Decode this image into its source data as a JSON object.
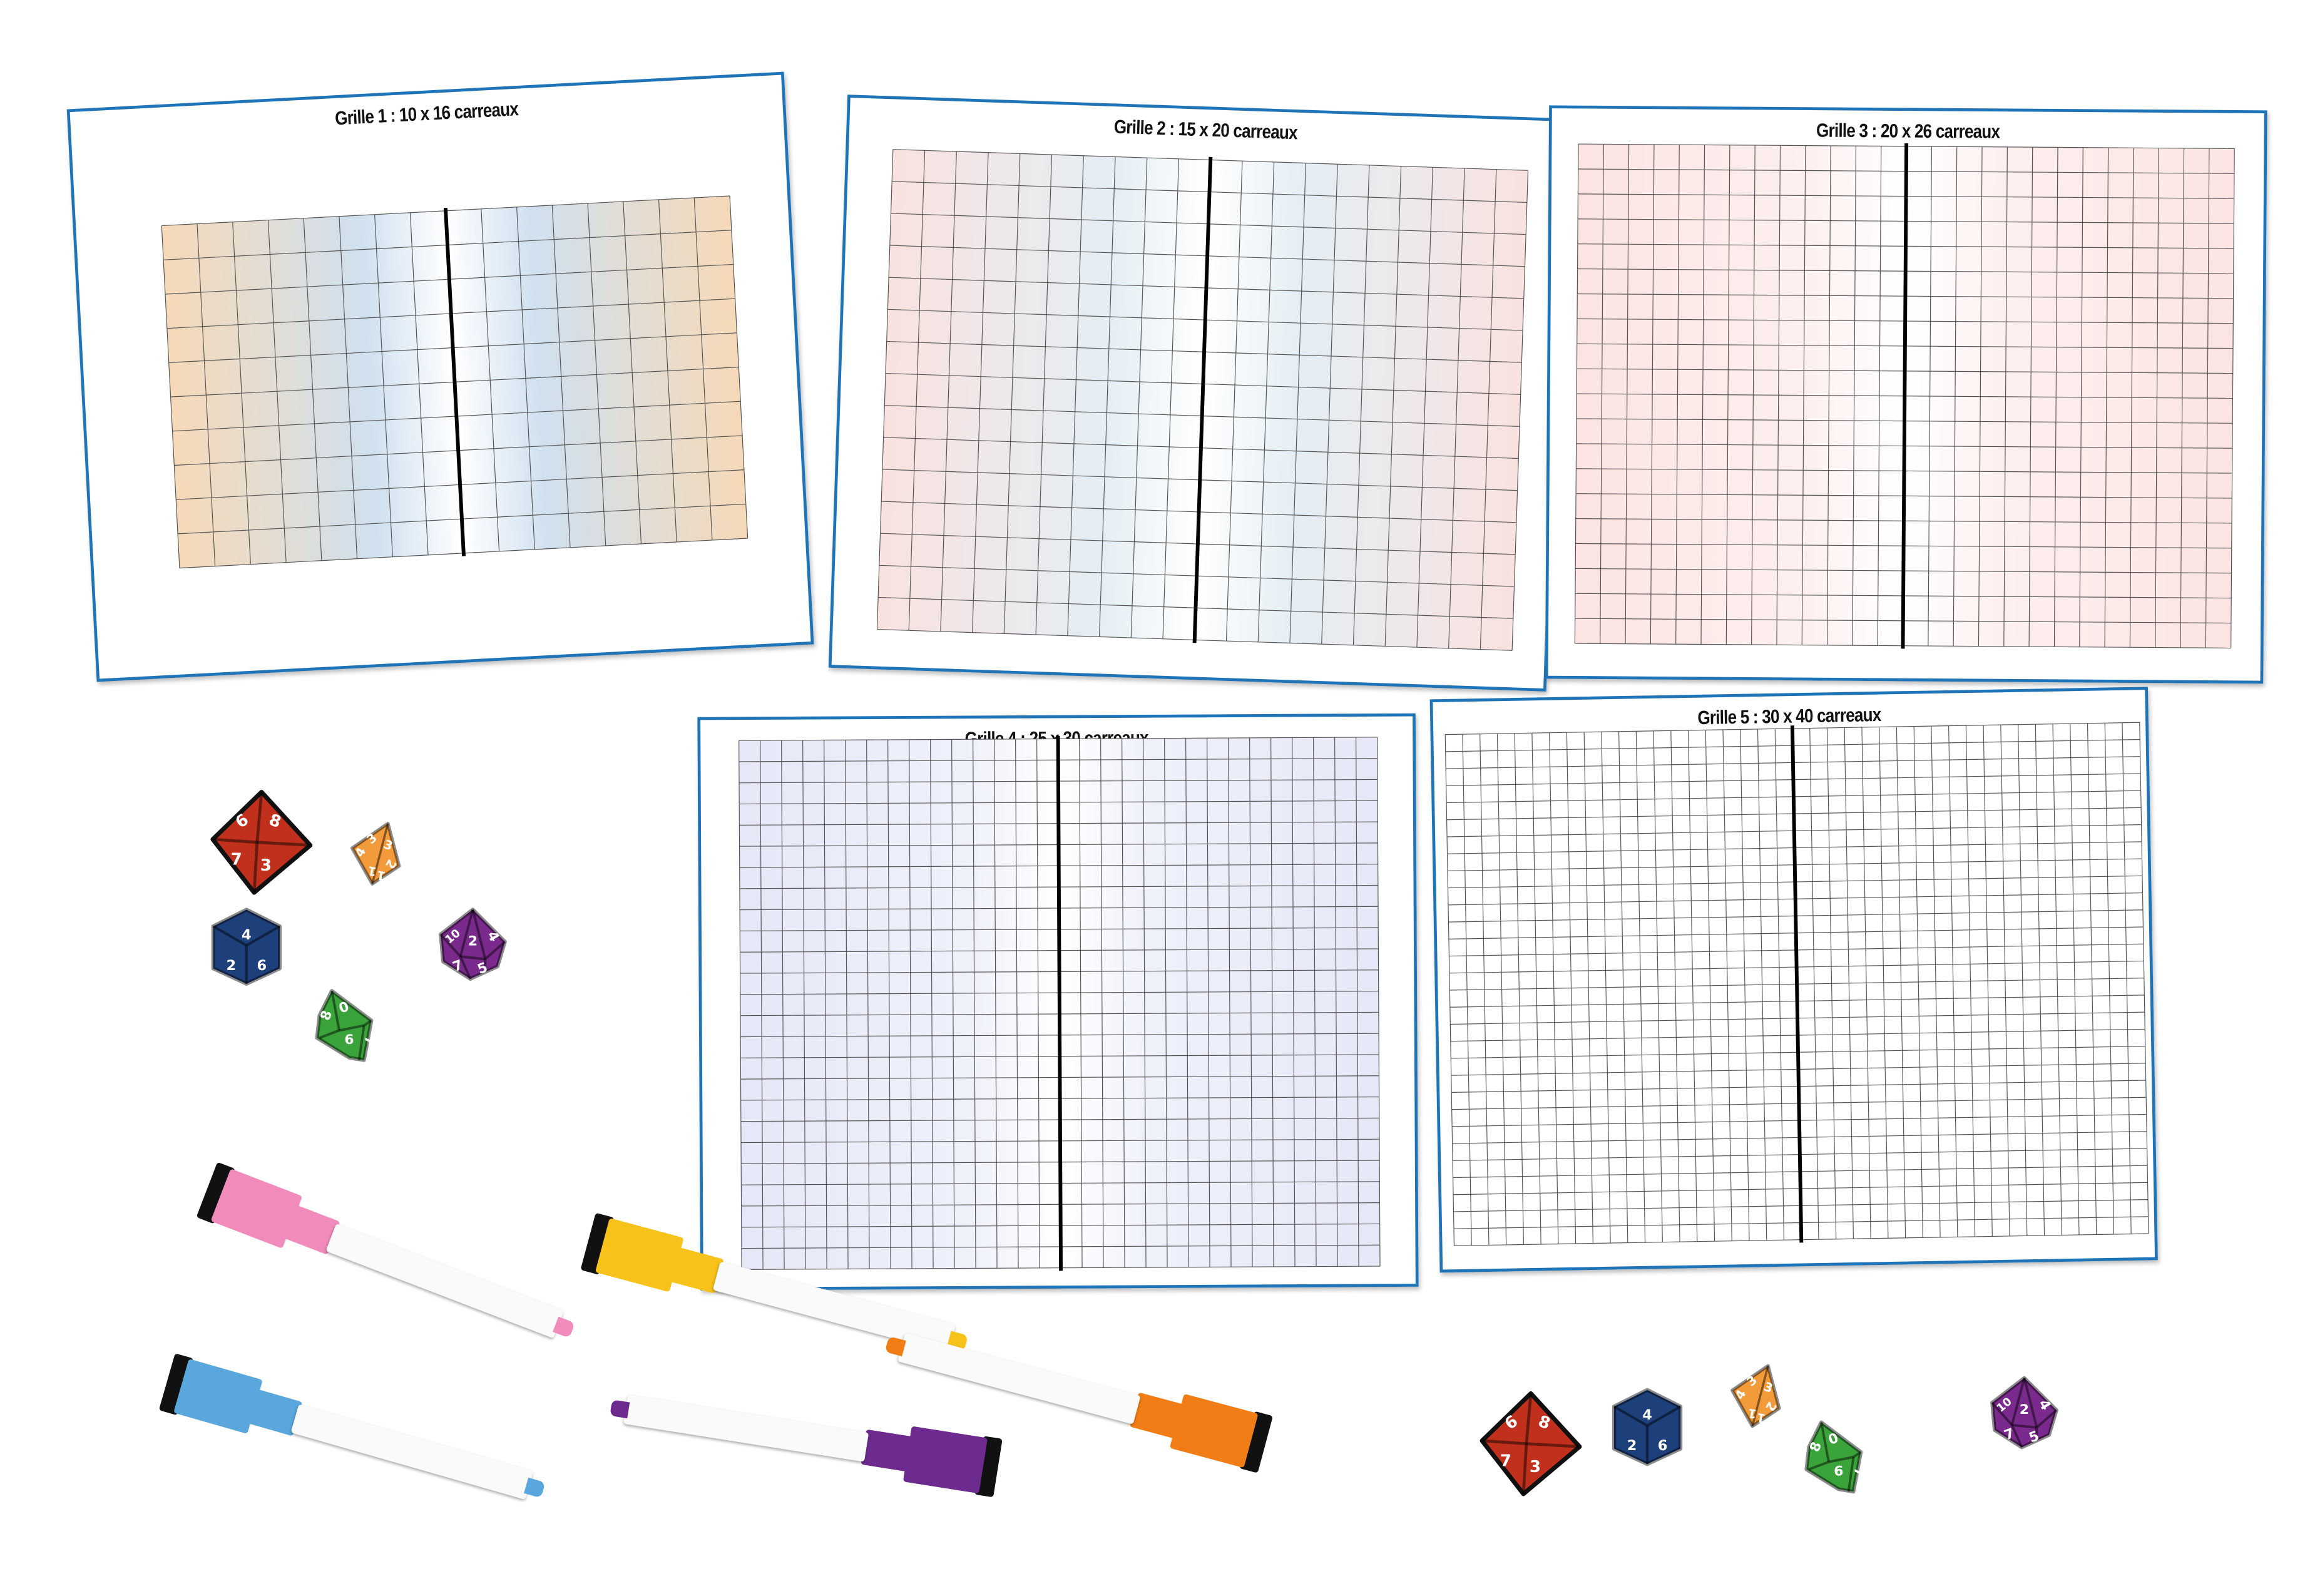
{
  "sheets": [
    {
      "title": "Grille 1 : 10 x 16 carreaux",
      "rows": 10,
      "cols": 16,
      "tint": "#f6d9b8",
      "tint2": "#cfe0ef"
    },
    {
      "title": "Grille 2 : 15 x 20 carreaux",
      "rows": 15,
      "cols": 20,
      "tint": "#f9e2df",
      "tint2": "#e4eef4"
    },
    {
      "title": "Grille 3 : 20 x 26 carreaux",
      "rows": 20,
      "cols": 26,
      "tint": "#fbe4e2",
      "tint2": "#fdf0ef"
    },
    {
      "title": "Grille 4 : 25 x 30 carreaux",
      "rows": 25,
      "cols": 30,
      "tint": "#e6e8f7",
      "tint2": "#eef0fa"
    },
    {
      "title": "Grille 5 : 30 x 40 carreaux",
      "rows": 30,
      "cols": 40,
      "tint": "#ffffff",
      "tint2": "#ffffff"
    }
  ],
  "colors": {
    "border": "#1f74b8",
    "grid_line": "#555555",
    "center_line": "#000000"
  },
  "dice": [
    {
      "type": "d8",
      "color": "#c0301c",
      "numbers": [
        "6",
        "8",
        "7",
        "3"
      ]
    },
    {
      "type": "d4",
      "color": "#f39a3a",
      "numbers": [
        "4",
        "3",
        "3",
        "2",
        "1",
        "1"
      ]
    },
    {
      "type": "d6",
      "color": "#1d3f7a",
      "numbers": [
        "4",
        "2",
        "6"
      ]
    },
    {
      "type": "d10",
      "color": "#7a2a8c",
      "numbers": [
        "10",
        "2",
        "4",
        "7",
        "5"
      ]
    },
    {
      "type": "d10g",
      "color": "#3aa33a",
      "numbers": [
        "8",
        "0",
        "6",
        "7"
      ]
    },
    {
      "type": "d8",
      "color": "#c0301c",
      "numbers": [
        "6",
        "8",
        "7",
        "3"
      ]
    },
    {
      "type": "d6",
      "color": "#1d3f7a",
      "numbers": [
        "4",
        "2",
        "6"
      ]
    },
    {
      "type": "d4",
      "color": "#f39a3a",
      "numbers": [
        "4",
        "3",
        "3",
        "2",
        "1",
        "1"
      ]
    },
    {
      "type": "d10g",
      "color": "#3aa33a",
      "numbers": [
        "8",
        "0",
        "6",
        "7"
      ]
    },
    {
      "type": "d10",
      "color": "#7a2a8c",
      "numbers": [
        "10",
        "2",
        "4",
        "7",
        "5"
      ]
    }
  ],
  "markers": [
    {
      "color": "pink",
      "hex": "#f08bbb"
    },
    {
      "color": "yellow",
      "hex": "#f7c21a"
    },
    {
      "color": "blue",
      "hex": "#5aa7de"
    },
    {
      "color": "purple",
      "hex": "#6d2b8f"
    },
    {
      "color": "orange",
      "hex": "#f07d16"
    }
  ]
}
